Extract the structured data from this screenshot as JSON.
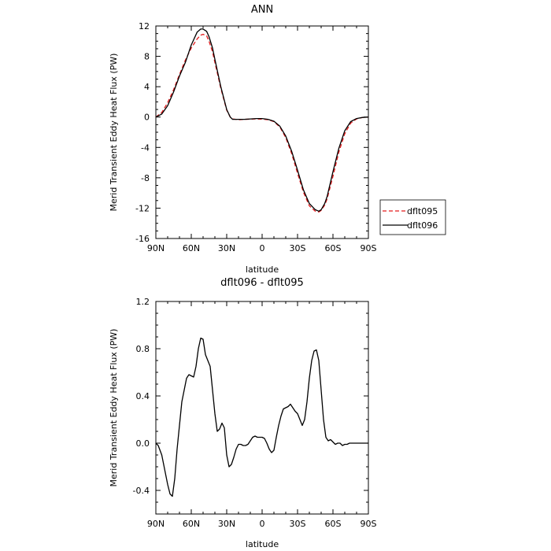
{
  "chart_data": [
    {
      "type": "line",
      "title": "ANN",
      "xlabel": "latitude",
      "ylabel": "Merid Transient Eddy Heat Flux (PW)",
      "xlim": [
        90,
        -90
      ],
      "ylim": [
        -16,
        12
      ],
      "x_ticks": [
        90,
        60,
        30,
        0,
        -30,
        -60,
        -90
      ],
      "x_tick_labels": [
        "90N",
        "60N",
        "30N",
        "0",
        "30S",
        "60S",
        "90S"
      ],
      "y_ticks": [
        -16,
        -12,
        -8,
        -4,
        0,
        4,
        8,
        12
      ],
      "y_tick_labels": [
        "-16",
        "-12",
        "-8",
        "-4",
        "0",
        "4",
        "8",
        "12"
      ],
      "legend_position": "right",
      "series": [
        {
          "name": "dflt095",
          "color": "#e41a1c",
          "dash": "dashed",
          "x": [
            90,
            85,
            80,
            75,
            70,
            65,
            60,
            55,
            52,
            50,
            47,
            45,
            42,
            40,
            35,
            30,
            27,
            25,
            20,
            15,
            10,
            5,
            0,
            -5,
            -10,
            -15,
            -20,
            -25,
            -30,
            -35,
            -40,
            -45,
            -48,
            -50,
            -53,
            -55,
            -60,
            -65,
            -70,
            -75,
            -80,
            -85,
            -90
          ],
          "y": [
            0.0,
            0.6,
            1.9,
            3.6,
            5.6,
            7.5,
            9.1,
            10.3,
            10.8,
            10.9,
            10.7,
            10.0,
            8.6,
            7.2,
            3.8,
            0.9,
            0.0,
            -0.25,
            -0.35,
            -0.3,
            -0.28,
            -0.25,
            -0.28,
            -0.35,
            -0.6,
            -1.3,
            -2.7,
            -4.8,
            -7.4,
            -9.9,
            -11.7,
            -12.4,
            -12.5,
            -12.3,
            -11.6,
            -10.8,
            -7.8,
            -4.6,
            -2.2,
            -0.8,
            -0.25,
            -0.05,
            0.0
          ]
        },
        {
          "name": "dflt096",
          "color": "#000000",
          "dash": "solid",
          "x": [
            90,
            85,
            80,
            75,
            70,
            65,
            60,
            55,
            52,
            50,
            47,
            45,
            42,
            40,
            35,
            30,
            27,
            25,
            20,
            15,
            10,
            5,
            0,
            -5,
            -10,
            -15,
            -20,
            -25,
            -30,
            -35,
            -40,
            -45,
            -48,
            -50,
            -53,
            -55,
            -60,
            -65,
            -70,
            -75,
            -80,
            -85,
            -90
          ],
          "y": [
            0.0,
            0.4,
            1.5,
            3.3,
            5.4,
            7.2,
            9.5,
            11.2,
            11.6,
            11.6,
            11.3,
            10.6,
            9.1,
            7.6,
            4.0,
            1.0,
            0.0,
            -0.3,
            -0.3,
            -0.3,
            -0.25,
            -0.2,
            -0.2,
            -0.3,
            -0.55,
            -1.2,
            -2.5,
            -4.5,
            -7.0,
            -9.6,
            -11.4,
            -12.2,
            -12.4,
            -12.2,
            -11.4,
            -10.5,
            -7.2,
            -4.1,
            -1.8,
            -0.6,
            -0.2,
            -0.05,
            0.0
          ]
        }
      ]
    },
    {
      "type": "line",
      "title": "dflt096 - dflt095",
      "xlabel": "latitude",
      "ylabel": "Merid Transient Eddy Heat Flux (PW)",
      "xlim": [
        90,
        -90
      ],
      "ylim": [
        -0.6,
        1.2
      ],
      "x_ticks": [
        90,
        60,
        30,
        0,
        -30,
        -60,
        -90
      ],
      "x_tick_labels": [
        "90N",
        "60N",
        "30N",
        "0",
        "30S",
        "60S",
        "90S"
      ],
      "y_ticks": [
        -0.4,
        0.0,
        0.4,
        0.8,
        1.2
      ],
      "y_tick_labels": [
        "-0.4",
        "0.0",
        "0.4",
        "0.8",
        "1.2"
      ],
      "series": [
        {
          "color": "#000000",
          "dash": "solid",
          "x": [
            90,
            88,
            85,
            82,
            80,
            78,
            76,
            74,
            72,
            70,
            68,
            66,
            64,
            62,
            60,
            58,
            56,
            54,
            52,
            50,
            48,
            46,
            44,
            42,
            40,
            38,
            36,
            34,
            32,
            30,
            28,
            26,
            24,
            22,
            20,
            18,
            16,
            14,
            12,
            10,
            8,
            6,
            4,
            2,
            0,
            -2,
            -4,
            -6,
            -8,
            -10,
            -12,
            -14,
            -16,
            -18,
            -20,
            -22,
            -24,
            -26,
            -28,
            -30,
            -32,
            -34,
            -36,
            -38,
            -40,
            -42,
            -44,
            -46,
            -48,
            -50,
            -52,
            -54,
            -56,
            -58,
            -60,
            -62,
            -64,
            -66,
            -68,
            -70,
            -72,
            -74,
            -76,
            -78,
            -80,
            -82,
            -84,
            -86,
            -88,
            -90
          ],
          "y": [
            0.0,
            -0.02,
            -0.1,
            -0.25,
            -0.35,
            -0.43,
            -0.45,
            -0.3,
            -0.05,
            0.15,
            0.35,
            0.45,
            0.55,
            0.58,
            0.57,
            0.56,
            0.65,
            0.8,
            0.89,
            0.88,
            0.75,
            0.7,
            0.65,
            0.45,
            0.25,
            0.1,
            0.12,
            0.17,
            0.13,
            -0.1,
            -0.2,
            -0.18,
            -0.12,
            -0.05,
            -0.01,
            -0.01,
            -0.02,
            -0.02,
            -0.01,
            0.02,
            0.05,
            0.06,
            0.05,
            0.05,
            0.05,
            0.04,
            0.0,
            -0.05,
            -0.08,
            -0.06,
            0.05,
            0.15,
            0.23,
            0.29,
            0.3,
            0.31,
            0.33,
            0.3,
            0.27,
            0.25,
            0.2,
            0.15,
            0.2,
            0.35,
            0.55,
            0.7,
            0.78,
            0.79,
            0.7,
            0.45,
            0.2,
            0.05,
            0.02,
            0.03,
            0.01,
            -0.01,
            0.0,
            0.0,
            -0.02,
            -0.01,
            -0.01,
            0.0,
            0.0,
            0.0,
            0.0,
            0.0,
            0.0,
            0.0,
            0.0,
            0.0
          ]
        }
      ]
    }
  ]
}
